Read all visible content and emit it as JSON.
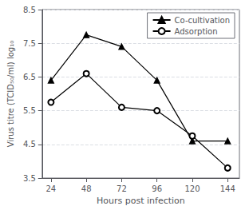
{
  "chart_data": {
    "type": "line",
    "x": [
      24,
      48,
      72,
      96,
      120,
      144
    ],
    "series": [
      {
        "name": "Co-cultivation",
        "color": "#000000",
        "marker": "triangle",
        "values": [
          6.4,
          7.75,
          7.4,
          6.4,
          4.6,
          4.6
        ]
      },
      {
        "name": "Adsorption",
        "color": "#000000",
        "marker": "open_circle",
        "values": [
          5.75,
          6.6,
          5.6,
          5.5,
          4.75,
          3.8
        ]
      }
    ],
    "x_label": "Hours post infection",
    "y_label": "Virus titre (TCID₅₀/ml) log₁₀",
    "xlim": [
      18,
      152
    ],
    "xticks": [
      24,
      48,
      72,
      96,
      120,
      144
    ],
    "ylim": [
      3.5,
      8.5
    ],
    "yticks": [
      3.5,
      4.5,
      5.5,
      6.5,
      7.5,
      8.5
    ],
    "grid": true,
    "legend": "upper right"
  }
}
